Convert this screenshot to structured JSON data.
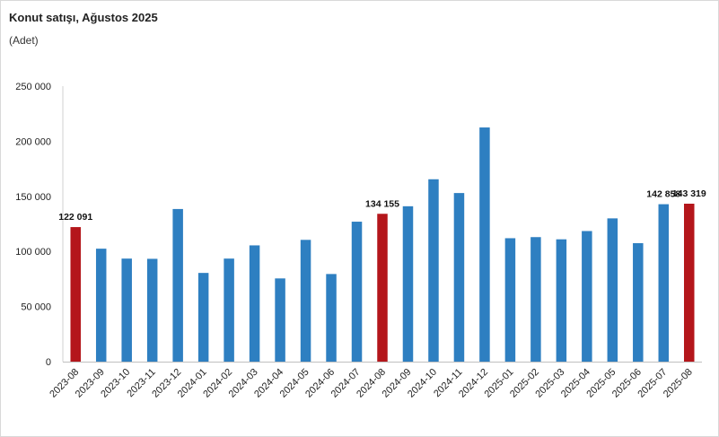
{
  "chart_data": {
    "type": "bar",
    "title": "Konut satışı, Ağustos 2025",
    "ylabel": "(Adet)",
    "xlabel": "",
    "ylim": [
      0,
      250000
    ],
    "yticks": [
      0,
      50000,
      100000,
      150000,
      200000,
      250000
    ],
    "ytick_labels": [
      "0",
      "50 000",
      "100 000",
      "150 000",
      "200 000",
      "250 000"
    ],
    "grid": false,
    "categories": [
      "2023-08",
      "2023-09",
      "2023-10",
      "2023-11",
      "2023-12",
      "2024-01",
      "2024-02",
      "2024-03",
      "2024-04",
      "2024-05",
      "2024-06",
      "2024-07",
      "2024-08",
      "2024-09",
      "2024-10",
      "2024-11",
      "2024-12",
      "2025-01",
      "2025-02",
      "2025-03",
      "2025-04",
      "2025-05",
      "2025-06",
      "2025-07",
      "2025-08"
    ],
    "values": [
      122091,
      102500,
      93500,
      93300,
      138500,
      80500,
      93500,
      105500,
      75500,
      110500,
      79500,
      127000,
      134155,
      141000,
      165500,
      153000,
      212500,
      112000,
      113000,
      111000,
      118500,
      130000,
      107500,
      142858,
      143319
    ],
    "highlight": [
      0,
      12,
      24
    ],
    "data_labels": [
      {
        "index": 0,
        "text": "122 091"
      },
      {
        "index": 12,
        "text": "134 155"
      },
      {
        "index": 23,
        "text": "142 858"
      },
      {
        "index": 24,
        "text": "143 319"
      }
    ],
    "colors": {
      "bar": "#2e7fc1",
      "highlight": "#b4161b"
    }
  }
}
